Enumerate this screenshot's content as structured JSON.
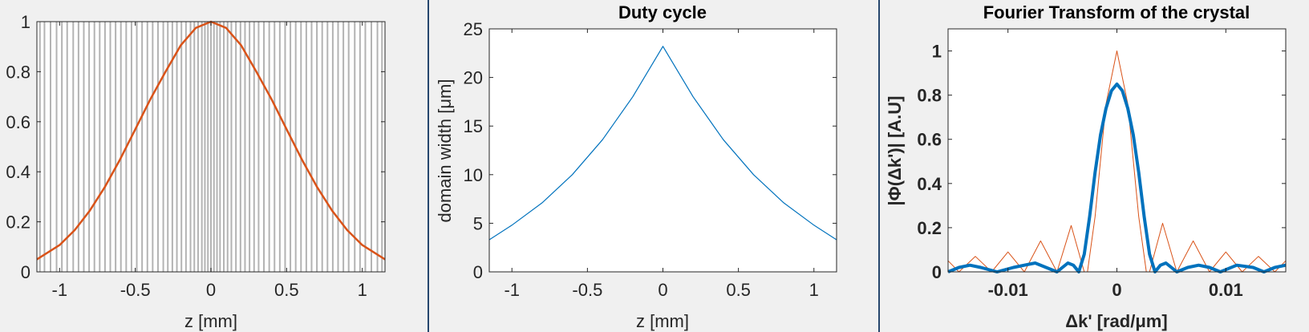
{
  "chart_data": [
    {
      "type": "line",
      "title": "",
      "xlabel": "z [mm]",
      "ylabel": "",
      "xlim": [
        -1.15,
        1.15
      ],
      "ylim": [
        0,
        1
      ],
      "xticks": [
        -1,
        -0.5,
        0,
        0.5,
        1
      ],
      "xtick_labels": [
        "-1",
        "-0.5",
        "0",
        "0.5",
        "1"
      ],
      "yticks": [
        0,
        0.2,
        0.4,
        0.6,
        0.8,
        1
      ],
      "ytick_labels": [
        "0",
        "0.2",
        "0.4",
        "0.6",
        "0.8",
        "1"
      ],
      "grid": false,
      "domain_walls": [
        -1.13,
        -1.1,
        -1.06,
        -1.02,
        -0.985,
        -0.95,
        -0.91,
        -0.875,
        -0.84,
        -0.805,
        -0.77,
        -0.735,
        -0.7,
        -0.665,
        -0.63,
        -0.595,
        -0.56,
        -0.525,
        -0.49,
        -0.455,
        -0.42,
        -0.385,
        -0.35,
        -0.315,
        -0.285,
        -0.255,
        -0.225,
        -0.195,
        -0.165,
        -0.135,
        -0.11,
        -0.085,
        -0.06,
        -0.04,
        -0.02,
        0.0,
        0.02,
        0.04,
        0.06,
        0.085,
        0.11,
        0.135,
        0.165,
        0.195,
        0.225,
        0.255,
        0.285,
        0.315,
        0.35,
        0.385,
        0.42,
        0.455,
        0.49,
        0.525,
        0.56,
        0.595,
        0.63,
        0.665,
        0.7,
        0.735,
        0.77,
        0.805,
        0.84,
        0.875,
        0.91,
        0.95,
        0.985,
        1.02,
        1.06,
        1.1,
        1.13
      ],
      "series": [
        {
          "x": [
            -1.15,
            -1.0,
            -0.9,
            -0.8,
            -0.7,
            -0.6,
            -0.5,
            -0.4,
            -0.3,
            -0.2,
            -0.1,
            0,
            0.1,
            0.2,
            0.3,
            0.4,
            0.5,
            0.6,
            0.7,
            0.8,
            0.9,
            1.0,
            1.15
          ],
          "y": [
            0.05,
            0.107,
            0.167,
            0.245,
            0.34,
            0.45,
            0.57,
            0.69,
            0.8,
            0.905,
            0.975,
            1.0,
            0.975,
            0.905,
            0.8,
            0.69,
            0.57,
            0.45,
            0.34,
            0.245,
            0.167,
            0.107,
            0.05
          ],
          "color": "#d95319"
        }
      ],
      "colors": {
        "walls": "#b3b3b3",
        "curve": "#d95319"
      }
    },
    {
      "type": "line",
      "title": "Duty cycle",
      "xlabel": "z [mm]",
      "ylabel": "domain width [μm]",
      "xlim": [
        -1.15,
        1.15
      ],
      "ylim": [
        0,
        25
      ],
      "xticks": [
        -1,
        -0.5,
        0,
        0.5,
        1
      ],
      "xtick_labels": [
        "-1",
        "-0.5",
        "0",
        "0.5",
        "1"
      ],
      "yticks": [
        0,
        5,
        10,
        15,
        20,
        25
      ],
      "ytick_labels": [
        "0",
        "5",
        "10",
        "15",
        "20",
        "25"
      ],
      "grid": false,
      "series": [
        {
          "x": [
            -1.15,
            -1.0,
            -0.8,
            -0.6,
            -0.4,
            -0.2,
            0,
            0.2,
            0.4,
            0.6,
            0.8,
            1.0,
            1.15
          ],
          "y": [
            3.3,
            4.8,
            7.1,
            10.0,
            13.6,
            18.0,
            23.2,
            18.0,
            13.6,
            10.0,
            7.1,
            4.8,
            3.3
          ],
          "color": "#0072bd"
        }
      ]
    },
    {
      "type": "line",
      "title": "Fourier Transform of the crystal",
      "xlabel": "Δk' [rad/μm]",
      "ylabel": "|Φ(Δk')| [A.U]",
      "xlim": [
        -0.0155,
        0.0155
      ],
      "ylim": [
        0,
        1.1
      ],
      "xticks": [
        -0.01,
        0,
        0.01
      ],
      "xtick_labels": [
        "-0.01",
        "0",
        "0.01"
      ],
      "yticks": [
        0,
        0.2,
        0.4,
        0.6,
        0.8,
        1
      ],
      "ytick_labels": [
        "0",
        "0.2",
        "0.4",
        "0.6",
        "0.8",
        "1"
      ],
      "grid": false,
      "series": [
        {
          "x": [
            -0.0155,
            -0.0145,
            -0.013,
            -0.0115,
            -0.01,
            -0.0085,
            -0.007,
            -0.0055,
            -0.0042,
            -0.003,
            -0.0027,
            -0.002,
            -0.001,
            0,
            0.001,
            0.002,
            0.0027,
            0.003,
            0.0042,
            0.0055,
            0.007,
            0.0085,
            0.01,
            0.0115,
            0.013,
            0.0145,
            0.0155
          ],
          "y": [
            0.05,
            0.0,
            0.07,
            0.0,
            0.09,
            0.0,
            0.14,
            0.0,
            0.21,
            0.0,
            0.0,
            0.25,
            0.76,
            1.0,
            0.76,
            0.25,
            0.0,
            0.0,
            0.22,
            0.0,
            0.14,
            0.0,
            0.09,
            0.0,
            0.07,
            0.0,
            0.05
          ],
          "color": "#d95319"
        },
        {
          "x": [
            -0.0155,
            -0.0145,
            -0.0135,
            -0.0125,
            -0.011,
            -0.0095,
            -0.0085,
            -0.0075,
            -0.0065,
            -0.0055,
            -0.0045,
            -0.004,
            -0.0035,
            -0.003,
            -0.0025,
            -0.002,
            -0.0015,
            -0.001,
            -0.0005,
            0,
            0.0005,
            0.001,
            0.0015,
            0.002,
            0.0025,
            0.003,
            0.0035,
            0.004,
            0.0045,
            0.0055,
            0.0065,
            0.0075,
            0.0085,
            0.0095,
            0.011,
            0.0125,
            0.0135,
            0.0145,
            0.0155
          ],
          "y": [
            0.0,
            0.02,
            0.03,
            0.02,
            0.0,
            0.02,
            0.03,
            0.04,
            0.02,
            0.0,
            0.04,
            0.03,
            0.0,
            0.08,
            0.25,
            0.45,
            0.62,
            0.74,
            0.82,
            0.85,
            0.82,
            0.74,
            0.62,
            0.45,
            0.25,
            0.08,
            0.0,
            0.03,
            0.04,
            0.0,
            0.02,
            0.03,
            0.02,
            0.0,
            0.03,
            0.02,
            0.0,
            0.02,
            0.03
          ],
          "color": "#0072bd"
        }
      ]
    }
  ]
}
